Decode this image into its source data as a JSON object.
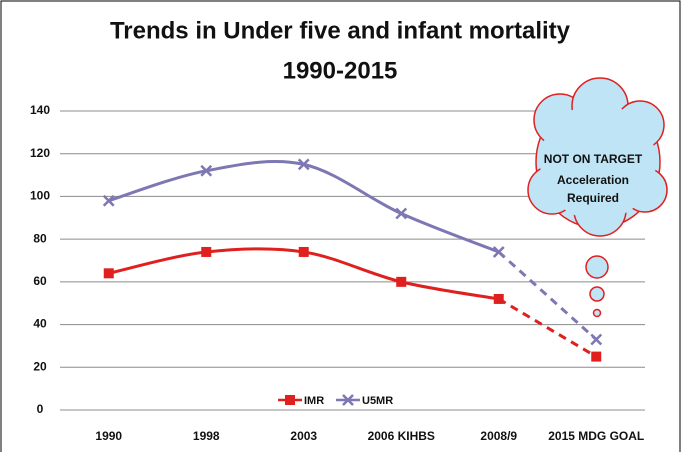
{
  "chart_data": {
    "type": "line",
    "title": [
      "Trends in Under five and infant mortality",
      "1990-2015"
    ],
    "categories": [
      "1990",
      "1998",
      "2003",
      "2006 KIHBS",
      "2008/9",
      "2015 MDG GOAL"
    ],
    "series": [
      {
        "name": "IMR",
        "color": "#e0201f",
        "marker": "square",
        "values": [
          64,
          74,
          74,
          60,
          52,
          25
        ]
      },
      {
        "name": "U5MR",
        "color": "#7d77b3",
        "marker": "x",
        "values": [
          98,
          112,
          115,
          92,
          74,
          33
        ]
      }
    ],
    "ylim": [
      0,
      140
    ],
    "yticks": [
      0,
      20,
      40,
      60,
      80,
      100,
      120,
      140
    ],
    "grid": true,
    "legend": "bottom",
    "annotations": [
      "NOT ON TARGET",
      "Acceleration",
      "Required"
    ]
  }
}
